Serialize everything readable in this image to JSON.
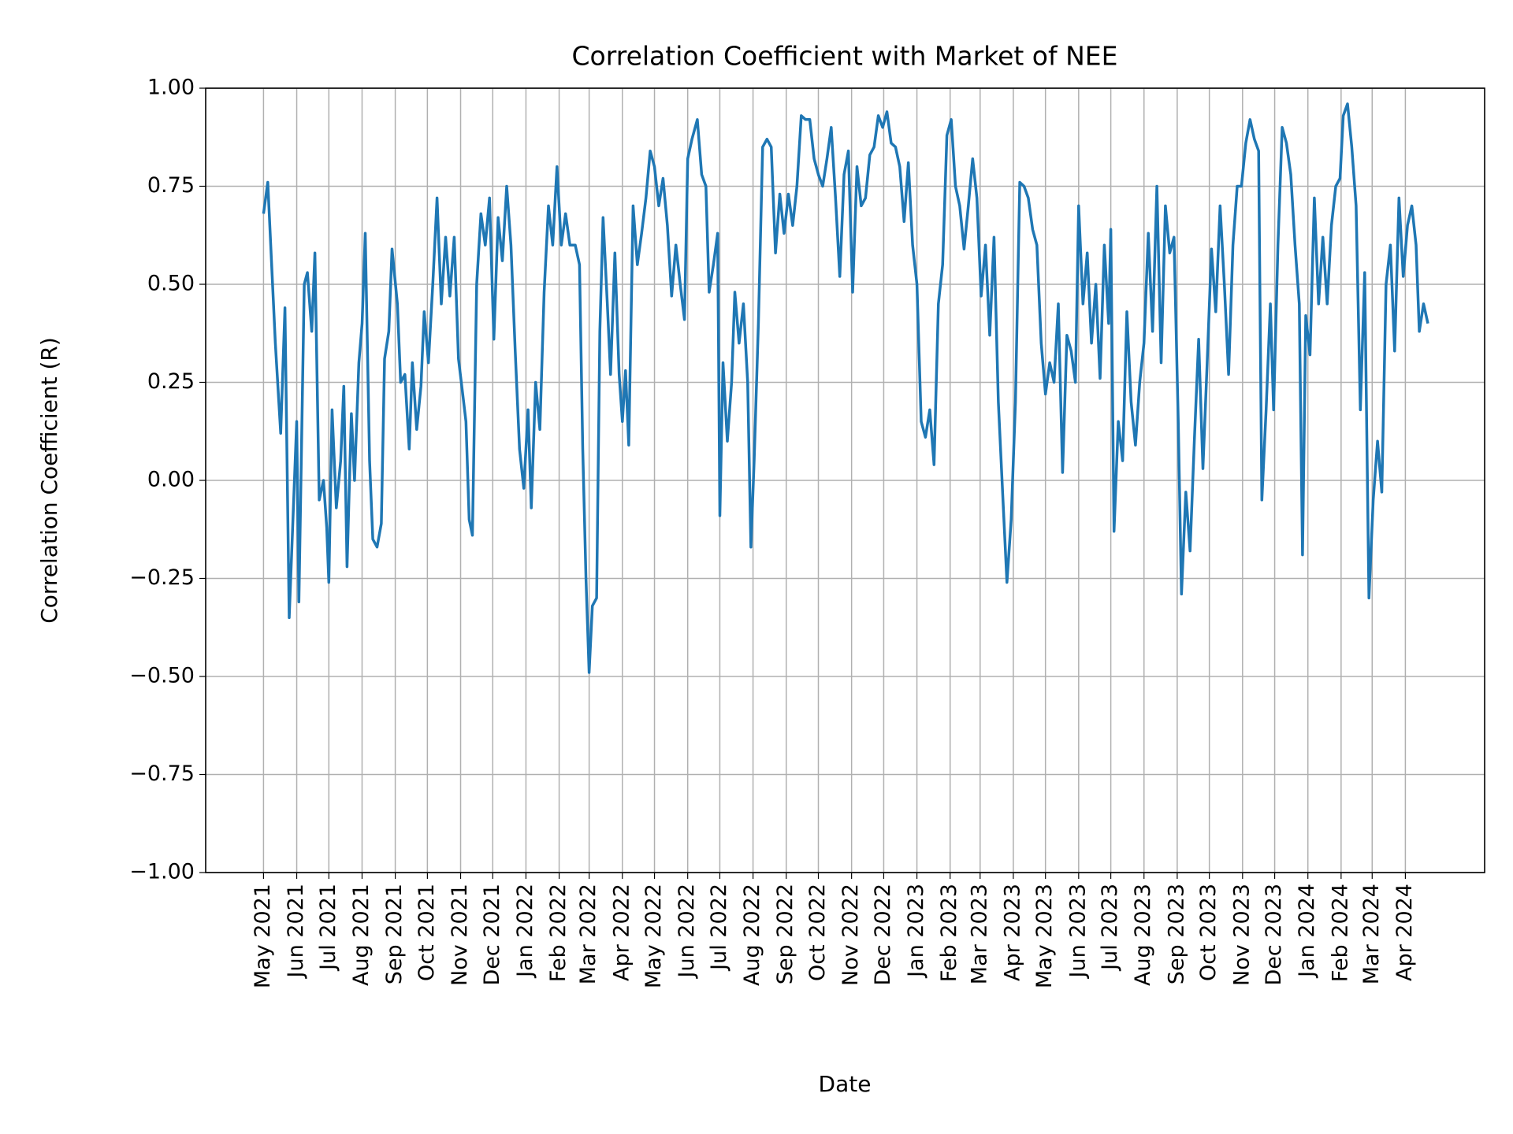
{
  "chart_data": {
    "type": "line",
    "title": "Correlation Coefficient with Market of NEE",
    "x_label": "Date",
    "y_label": "Correlation Coefficient (R)",
    "grid": true,
    "xlim": [
      "2021-03-08",
      "2024-06-14"
    ],
    "ylim": [
      -1,
      1
    ],
    "yticks": [
      {
        "value": -1,
        "label": "−1.00"
      },
      {
        "value": -0.75,
        "label": "−0.75"
      },
      {
        "value": -0.5,
        "label": "−0.50"
      },
      {
        "value": -0.25,
        "label": "−0.25"
      },
      {
        "value": 0,
        "label": "0.00"
      },
      {
        "value": 0.25,
        "label": "0.25"
      },
      {
        "value": 0.5,
        "label": "0.50"
      },
      {
        "value": 0.75,
        "label": "0.75"
      },
      {
        "value": 1,
        "label": "1.00"
      }
    ],
    "xticks": [
      {
        "value": "2021-05-01",
        "label": "May 2021"
      },
      {
        "value": "2021-06-01",
        "label": "Jun 2021"
      },
      {
        "value": "2021-07-01",
        "label": "Jul 2021"
      },
      {
        "value": "2021-08-01",
        "label": "Aug 2021"
      },
      {
        "value": "2021-09-01",
        "label": "Sep 2021"
      },
      {
        "value": "2021-10-01",
        "label": "Oct 2021"
      },
      {
        "value": "2021-11-01",
        "label": "Nov 2021"
      },
      {
        "value": "2021-12-01",
        "label": "Dec 2021"
      },
      {
        "value": "2022-01-01",
        "label": "Jan 2022"
      },
      {
        "value": "2022-02-01",
        "label": "Feb 2022"
      },
      {
        "value": "2022-03-01",
        "label": "Mar 2022"
      },
      {
        "value": "2022-04-01",
        "label": "Apr 2022"
      },
      {
        "value": "2022-05-01",
        "label": "May 2022"
      },
      {
        "value": "2022-06-01",
        "label": "Jun 2022"
      },
      {
        "value": "2022-07-01",
        "label": "Jul 2022"
      },
      {
        "value": "2022-08-01",
        "label": "Aug 2022"
      },
      {
        "value": "2022-09-01",
        "label": "Sep 2022"
      },
      {
        "value": "2022-10-01",
        "label": "Oct 2022"
      },
      {
        "value": "2022-11-01",
        "label": "Nov 2022"
      },
      {
        "value": "2022-12-01",
        "label": "Dec 2022"
      },
      {
        "value": "2023-01-01",
        "label": "Jan 2023"
      },
      {
        "value": "2023-02-01",
        "label": "Feb 2023"
      },
      {
        "value": "2023-03-01",
        "label": "Mar 2023"
      },
      {
        "value": "2023-04-01",
        "label": "Apr 2023"
      },
      {
        "value": "2023-05-01",
        "label": "May 2023"
      },
      {
        "value": "2023-06-01",
        "label": "Jun 2023"
      },
      {
        "value": "2023-07-01",
        "label": "Jul 2023"
      },
      {
        "value": "2023-08-01",
        "label": "Aug 2023"
      },
      {
        "value": "2023-09-01",
        "label": "Sep 2023"
      },
      {
        "value": "2023-10-01",
        "label": "Oct 2023"
      },
      {
        "value": "2023-11-01",
        "label": "Nov 2023"
      },
      {
        "value": "2023-12-01",
        "label": "Dec 2023"
      },
      {
        "value": "2024-01-01",
        "label": "Jan 2024"
      },
      {
        "value": "2024-02-01",
        "label": "Feb 2024"
      },
      {
        "value": "2024-03-01",
        "label": "Mar 2024"
      },
      {
        "value": "2024-04-01",
        "label": "Apr 2024"
      }
    ],
    "color": "#1f77b4",
    "x": [
      "2021-05-01",
      "2021-05-05",
      "2021-05-12",
      "2021-05-17",
      "2021-05-21",
      "2021-05-25",
      "2021-06-01",
      "2021-06-03",
      "2021-06-08",
      "2021-06-11",
      "2021-06-15",
      "2021-06-18",
      "2021-06-22",
      "2021-06-26",
      "2021-06-29",
      "2021-07-01",
      "2021-07-04",
      "2021-07-08",
      "2021-07-12",
      "2021-07-15",
      "2021-07-18",
      "2021-07-22",
      "2021-07-25",
      "2021-07-29",
      "2021-08-01",
      "2021-08-04",
      "2021-08-08",
      "2021-08-11",
      "2021-08-15",
      "2021-08-19",
      "2021-08-22",
      "2021-08-26",
      "2021-08-29",
      "2021-09-03",
      "2021-09-06",
      "2021-09-10",
      "2021-09-14",
      "2021-09-17",
      "2021-09-21",
      "2021-09-25",
      "2021-09-28",
      "2021-10-02",
      "2021-10-06",
      "2021-10-10",
      "2021-10-14",
      "2021-10-18",
      "2021-10-22",
      "2021-10-26",
      "2021-10-30",
      "2021-11-03",
      "2021-11-06",
      "2021-11-09",
      "2021-11-12",
      "2021-11-16",
      "2021-11-20",
      "2021-11-24",
      "2021-11-28",
      "2021-12-02",
      "2021-12-06",
      "2021-12-10",
      "2021-12-14",
      "2021-12-18",
      "2021-12-22",
      "2021-12-26",
      "2021-12-30",
      "2022-01-03",
      "2022-01-06",
      "2022-01-10",
      "2022-01-14",
      "2022-01-18",
      "2022-01-22",
      "2022-01-26",
      "2022-01-30",
      "2022-02-03",
      "2022-02-07",
      "2022-02-11",
      "2022-02-16",
      "2022-02-20",
      "2022-02-23",
      "2022-02-26",
      "2022-03-01",
      "2022-03-04",
      "2022-03-08",
      "2022-03-11",
      "2022-03-14",
      "2022-03-18",
      "2022-03-21",
      "2022-03-25",
      "2022-03-29",
      "2022-04-01",
      "2022-04-04",
      "2022-04-07",
      "2022-04-11",
      "2022-04-15",
      "2022-04-19",
      "2022-04-23",
      "2022-04-27",
      "2022-05-01",
      "2022-05-05",
      "2022-05-09",
      "2022-05-13",
      "2022-05-17",
      "2022-05-21",
      "2022-05-25",
      "2022-05-29",
      "2022-06-01",
      "2022-06-05",
      "2022-06-10",
      "2022-06-14",
      "2022-06-18",
      "2022-06-21",
      "2022-06-25",
      "2022-06-29",
      "2022-07-01",
      "2022-07-04",
      "2022-07-08",
      "2022-07-12",
      "2022-07-15",
      "2022-07-19",
      "2022-07-23",
      "2022-07-27",
      "2022-07-30",
      "2022-08-02",
      "2022-08-06",
      "2022-08-10",
      "2022-08-14",
      "2022-08-18",
      "2022-08-22",
      "2022-08-26",
      "2022-08-30",
      "2022-09-03",
      "2022-09-07",
      "2022-09-11",
      "2022-09-15",
      "2022-09-19",
      "2022-09-23",
      "2022-09-27",
      "2022-10-01",
      "2022-10-05",
      "2022-10-09",
      "2022-10-13",
      "2022-10-17",
      "2022-10-21",
      "2022-10-25",
      "2022-10-29",
      "2022-11-02",
      "2022-11-06",
      "2022-11-10",
      "2022-11-14",
      "2022-11-18",
      "2022-11-22",
      "2022-11-26",
      "2022-11-30",
      "2022-12-04",
      "2022-12-08",
      "2022-12-12",
      "2022-12-16",
      "2022-12-20",
      "2022-12-24",
      "2022-12-28",
      "2023-01-01",
      "2023-01-05",
      "2023-01-09",
      "2023-01-13",
      "2023-01-17",
      "2023-01-21",
      "2023-01-25",
      "2023-01-29",
      "2023-02-02",
      "2023-02-06",
      "2023-02-10",
      "2023-02-14",
      "2023-02-18",
      "2023-02-22",
      "2023-02-26",
      "2023-03-02",
      "2023-03-06",
      "2023-03-10",
      "2023-03-14",
      "2023-03-18",
      "2023-03-22",
      "2023-03-26",
      "2023-03-30",
      "2023-04-03",
      "2023-04-07",
      "2023-04-11",
      "2023-04-15",
      "2023-04-19",
      "2023-04-23",
      "2023-04-27",
      "2023-05-01",
      "2023-05-05",
      "2023-05-09",
      "2023-05-13",
      "2023-05-17",
      "2023-05-21",
      "2023-05-25",
      "2023-05-29",
      "2023-06-01",
      "2023-06-05",
      "2023-06-09",
      "2023-06-13",
      "2023-06-17",
      "2023-06-21",
      "2023-06-25",
      "2023-06-29",
      "2023-07-01",
      "2023-07-04",
      "2023-07-08",
      "2023-07-12",
      "2023-07-16",
      "2023-07-20",
      "2023-07-24",
      "2023-07-28",
      "2023-08-01",
      "2023-08-05",
      "2023-08-09",
      "2023-08-13",
      "2023-08-17",
      "2023-08-21",
      "2023-08-25",
      "2023-08-29",
      "2023-09-02",
      "2023-09-05",
      "2023-09-09",
      "2023-09-13",
      "2023-09-17",
      "2023-09-21",
      "2023-09-25",
      "2023-09-29",
      "2023-10-03",
      "2023-10-07",
      "2023-10-11",
      "2023-10-15",
      "2023-10-19",
      "2023-10-23",
      "2023-10-27",
      "2023-10-31",
      "2023-11-04",
      "2023-11-08",
      "2023-11-12",
      "2023-11-16",
      "2023-11-19",
      "2023-11-23",
      "2023-11-27",
      "2023-11-30",
      "2023-12-04",
      "2023-12-08",
      "2023-12-12",
      "2023-12-16",
      "2023-12-20",
      "2023-12-24",
      "2023-12-27",
      "2023-12-30",
      "2024-01-03",
      "2024-01-07",
      "2024-01-11",
      "2024-01-15",
      "2024-01-19",
      "2024-01-23",
      "2024-01-27",
      "2024-01-31",
      "2024-02-03",
      "2024-02-07",
      "2024-02-11",
      "2024-02-15",
      "2024-02-19",
      "2024-02-23",
      "2024-02-27",
      "2024-03-02",
      "2024-03-06",
      "2024-03-10",
      "2024-03-14",
      "2024-03-18",
      "2024-03-22",
      "2024-03-26",
      "2024-03-30",
      "2024-04-03",
      "2024-04-07",
      "2024-04-11",
      "2024-04-14",
      "2024-04-18",
      "2024-04-22"
    ],
    "values": [
      0.68,
      0.76,
      0.35,
      0.12,
      0.44,
      -0.35,
      0.15,
      -0.31,
      0.5,
      0.53,
      0.38,
      0.58,
      -0.05,
      0.0,
      -0.12,
      -0.26,
      0.18,
      -0.07,
      0.05,
      0.24,
      -0.22,
      0.17,
      0.0,
      0.3,
      0.4,
      0.63,
      0.05,
      -0.15,
      -0.17,
      -0.11,
      0.31,
      0.38,
      0.59,
      0.45,
      0.25,
      0.27,
      0.08,
      0.3,
      0.13,
      0.24,
      0.43,
      0.3,
      0.5,
      0.72,
      0.45,
      0.62,
      0.47,
      0.62,
      0.31,
      0.22,
      0.15,
      -0.1,
      -0.14,
      0.5,
      0.68,
      0.6,
      0.72,
      0.36,
      0.67,
      0.56,
      0.75,
      0.6,
      0.33,
      0.08,
      -0.02,
      0.18,
      -0.07,
      0.25,
      0.13,
      0.48,
      0.7,
      0.6,
      0.8,
      0.6,
      0.68,
      0.6,
      0.6,
      0.55,
      0.08,
      -0.25,
      -0.49,
      -0.32,
      -0.3,
      0.38,
      0.67,
      0.45,
      0.27,
      0.58,
      0.27,
      0.15,
      0.28,
      0.09,
      0.7,
      0.55,
      0.63,
      0.72,
      0.84,
      0.8,
      0.7,
      0.77,
      0.65,
      0.47,
      0.6,
      0.5,
      0.41,
      0.82,
      0.87,
      0.92,
      0.78,
      0.75,
      0.48,
      0.55,
      0.63,
      -0.09,
      0.3,
      0.1,
      0.25,
      0.48,
      0.35,
      0.45,
      0.25,
      -0.17,
      0.05,
      0.4,
      0.85,
      0.87,
      0.85,
      0.58,
      0.73,
      0.63,
      0.73,
      0.65,
      0.75,
      0.93,
      0.92,
      0.92,
      0.82,
      0.78,
      0.75,
      0.82,
      0.9,
      0.72,
      0.52,
      0.78,
      0.84,
      0.48,
      0.8,
      0.7,
      0.72,
      0.83,
      0.85,
      0.93,
      0.9,
      0.94,
      0.86,
      0.85,
      0.8,
      0.66,
      0.81,
      0.6,
      0.5,
      0.15,
      0.11,
      0.18,
      0.04,
      0.45,
      0.55,
      0.88,
      0.92,
      0.75,
      0.7,
      0.59,
      0.7,
      0.82,
      0.72,
      0.47,
      0.6,
      0.37,
      0.62,
      0.2,
      -0.03,
      -0.26,
      -0.1,
      0.2,
      0.76,
      0.75,
      0.72,
      0.64,
      0.6,
      0.35,
      0.22,
      0.3,
      0.25,
      0.45,
      0.02,
      0.37,
      0.33,
      0.25,
      0.7,
      0.45,
      0.58,
      0.35,
      0.5,
      0.26,
      0.6,
      0.4,
      0.64,
      -0.13,
      0.15,
      0.05,
      0.43,
      0.2,
      0.09,
      0.25,
      0.35,
      0.63,
      0.38,
      0.75,
      0.3,
      0.7,
      0.58,
      0.62,
      0.15,
      -0.29,
      -0.03,
      -0.18,
      0.1,
      0.36,
      0.03,
      0.3,
      0.59,
      0.43,
      0.7,
      0.5,
      0.27,
      0.6,
      0.75,
      0.75,
      0.86,
      0.92,
      0.87,
      0.84,
      -0.05,
      0.18,
      0.45,
      0.18,
      0.6,
      0.9,
      0.86,
      0.78,
      0.6,
      0.45,
      -0.19,
      0.42,
      0.32,
      0.72,
      0.45,
      0.62,
      0.45,
      0.65,
      0.75,
      0.77,
      0.93,
      0.96,
      0.85,
      0.7,
      0.18,
      0.53,
      -0.3,
      -0.05,
      0.1,
      -0.03,
      0.5,
      0.6,
      0.33,
      0.72,
      0.52,
      0.65,
      0.7,
      0.6,
      0.38,
      0.45,
      0.4
    ]
  }
}
